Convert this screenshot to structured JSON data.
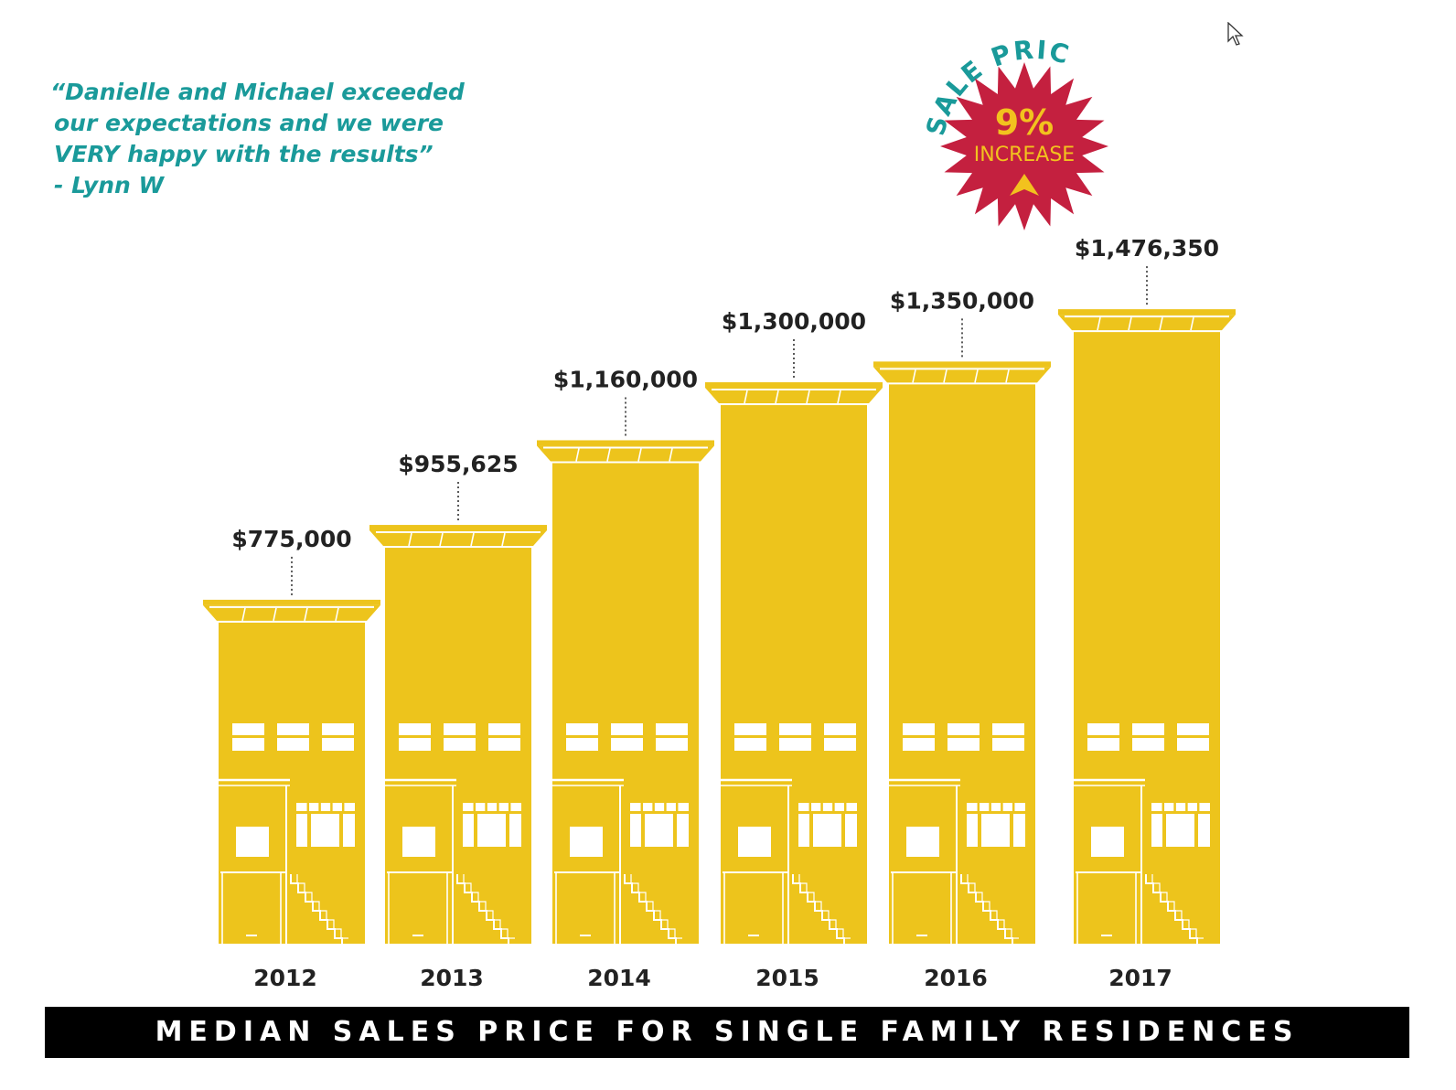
{
  "quote": {
    "lines": [
      "“Danielle and Michael exceeded",
      "our expectations and we were",
      "VERY happy with the results”",
      "- Lynn W"
    ]
  },
  "badge": {
    "arc_text": "SALE PRICE",
    "percent": "9%",
    "label": "INCREASE"
  },
  "footer_title": "MEDIAN SALES PRICE FOR SINGLE FAMILY RESIDENCES",
  "colors": {
    "building": "#EDC41C",
    "teal": "#1A9A9A",
    "badge_red": "#C4203F",
    "badge_gold": "#F2C21E",
    "text": "#222222"
  },
  "chart_data": {
    "type": "bar",
    "categories": [
      "2012",
      "2013",
      "2014",
      "2015",
      "2016",
      "2017"
    ],
    "values": [
      775000,
      955625,
      1160000,
      1300000,
      1350000,
      1476350
    ],
    "value_labels": [
      "$775,000",
      "$955,625",
      "$1,160,000",
      "$1,300,000",
      "$1,350,000",
      "$1,476,350"
    ],
    "title": "MEDIAN SALES PRICE FOR SINGLE FAMILY RESIDENCES",
    "xlabel": "",
    "ylabel": "",
    "grid": false
  }
}
